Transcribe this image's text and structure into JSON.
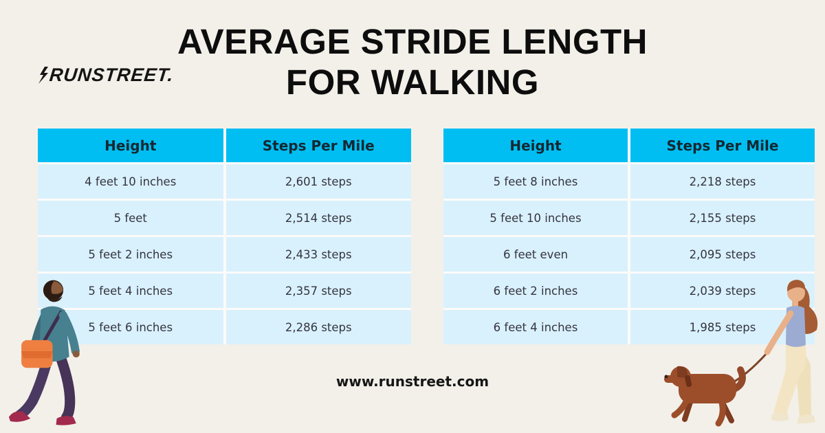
{
  "page": {
    "brand": "RUNSTREET.",
    "title_line1": "AVERAGE STRIDE LENGTH",
    "title_line2": "FOR WALKING",
    "website": "www.runstreet.com"
  },
  "colors": {
    "background": "#F3F0EA",
    "header_blue": "#00BEF2",
    "row_blue": "#D9F1FD",
    "title_text": "#0D0D0D"
  },
  "tables": {
    "left": {
      "headers": [
        "Height",
        "Steps Per Mile"
      ],
      "rows": [
        [
          "4 feet 10 inches",
          "2,601 steps"
        ],
        [
          "5 feet",
          "2,514 steps"
        ],
        [
          "5 feet 2 inches",
          "2,433 steps"
        ],
        [
          "5 feet 4 inches",
          "2,357 steps"
        ],
        [
          "5 feet 6 inches",
          "2,286 steps"
        ]
      ]
    },
    "right": {
      "headers": [
        "Height",
        "Steps Per Mile"
      ],
      "rows": [
        [
          "5 feet 8 inches",
          "2,218 steps"
        ],
        [
          "5 feet 10 inches",
          "2,155 steps"
        ],
        [
          "6 feet even",
          "2,095 steps"
        ],
        [
          "6 feet 2 inches",
          "2,039 steps"
        ],
        [
          "6 feet 4 inches",
          "1,985 steps"
        ]
      ]
    }
  },
  "chart_data": [
    {
      "type": "table",
      "title": "Average Stride Length for Walking",
      "columns": [
        "Height",
        "Steps Per Mile"
      ],
      "rows": [
        [
          "4 feet 10 inches",
          2601
        ],
        [
          "5 feet",
          2514
        ],
        [
          "5 feet 2 inches",
          2433
        ],
        [
          "5 feet 4 inches",
          2357
        ],
        [
          "5 feet 6 inches",
          2286
        ]
      ]
    },
    {
      "type": "table",
      "title": "Average Stride Length for Walking (continued)",
      "columns": [
        "Height",
        "Steps Per Mile"
      ],
      "rows": [
        [
          "5 feet 8 inches",
          2218
        ],
        [
          "5 feet 10 inches",
          2155
        ],
        [
          "6 feet even",
          2095
        ],
        [
          "6 feet 2 inches",
          2039
        ],
        [
          "6 feet 4 inches",
          1985
        ]
      ]
    }
  ],
  "illustrations": {
    "left": "man-walking-with-orange-bag",
    "right": "woman-walking-dog-on-leash"
  }
}
